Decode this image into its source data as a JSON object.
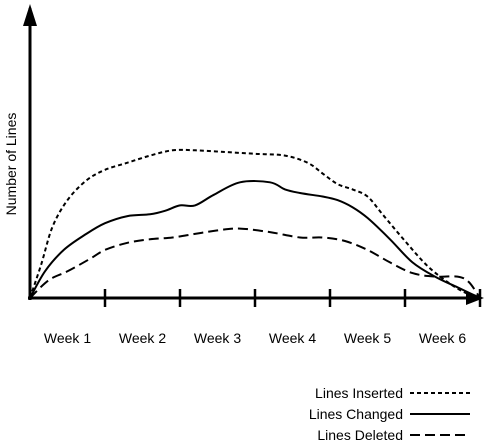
{
  "chart_data": {
    "type": "line",
    "ylabel": "Number of Lines",
    "xlabel": "",
    "categories": [
      "Week 1",
      "Week 2",
      "Week 3",
      "Week 4",
      "Week 5",
      "Week 6"
    ],
    "xlim": [
      0,
      6
    ],
    "ylim": [
      0,
      1
    ],
    "grid": false,
    "legend_position": "bottom-right",
    "series": [
      {
        "name": "Lines Inserted",
        "dash": "4,3",
        "x": [
          0,
          0.15,
          0.3,
          0.5,
          0.75,
          1.0,
          1.3,
          1.6,
          1.9,
          2.2,
          2.6,
          3.0,
          3.4,
          3.7,
          3.9,
          4.1,
          4.3,
          4.5,
          4.7,
          5.0,
          5.3,
          5.6,
          5.85,
          6.0
        ],
        "values": [
          0,
          0.19,
          0.4,
          0.55,
          0.66,
          0.72,
          0.76,
          0.8,
          0.83,
          0.83,
          0.82,
          0.81,
          0.8,
          0.76,
          0.7,
          0.64,
          0.61,
          0.57,
          0.47,
          0.32,
          0.18,
          0.08,
          0.02,
          0
        ]
      },
      {
        "name": "Lines Changed",
        "dash": "",
        "x": [
          0,
          0.2,
          0.45,
          0.75,
          1.0,
          1.3,
          1.6,
          1.8,
          2.0,
          2.2,
          2.45,
          2.8,
          3.2,
          3.4,
          3.6,
          3.9,
          4.1,
          4.3,
          4.5,
          4.8,
          5.1,
          5.4,
          5.7,
          6.0
        ],
        "values": [
          0,
          0.15,
          0.27,
          0.36,
          0.42,
          0.46,
          0.47,
          0.49,
          0.52,
          0.52,
          0.58,
          0.65,
          0.65,
          0.61,
          0.59,
          0.57,
          0.55,
          0.51,
          0.45,
          0.33,
          0.2,
          0.12,
          0.06,
          0
        ]
      },
      {
        "name": "Lines Deleted",
        "dash": "10,5",
        "x": [
          0,
          0.25,
          0.5,
          0.8,
          1.0,
          1.3,
          1.6,
          1.9,
          2.2,
          2.5,
          2.8,
          3.2,
          3.6,
          3.9,
          4.2,
          4.5,
          4.8,
          5.1,
          5.4,
          5.7,
          5.85,
          6.0
        ],
        "values": [
          0,
          0.1,
          0.15,
          0.22,
          0.27,
          0.31,
          0.33,
          0.34,
          0.36,
          0.38,
          0.39,
          0.37,
          0.34,
          0.34,
          0.32,
          0.27,
          0.2,
          0.14,
          0.12,
          0.12,
          0.09,
          0
        ]
      }
    ]
  }
}
